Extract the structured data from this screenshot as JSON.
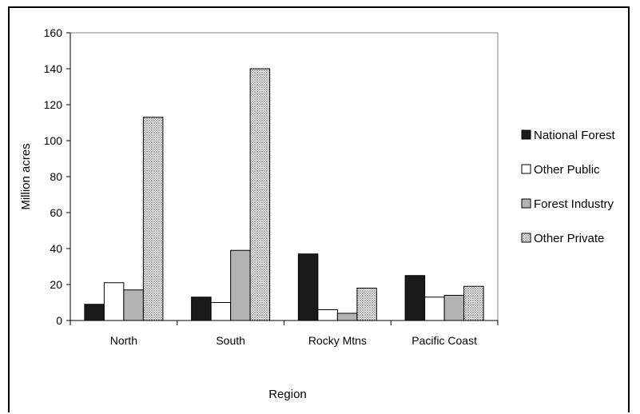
{
  "chart_data": {
    "type": "bar",
    "title": "",
    "xlabel": "Region",
    "ylabel": "Million acres",
    "ylim": [
      0,
      160
    ],
    "yticks": [
      0,
      20,
      40,
      60,
      80,
      100,
      120,
      140,
      160
    ],
    "categories": [
      "North",
      "South",
      "Rocky Mtns",
      "Pacific Coast"
    ],
    "series": [
      {
        "name": "National Forest",
        "values": [
          9,
          13,
          37,
          25
        ],
        "fill": "solid",
        "color": "#1a1a1a"
      },
      {
        "name": "Other Public",
        "values": [
          21,
          10,
          6,
          13
        ],
        "fill": "solid",
        "color": "#ffffff"
      },
      {
        "name": "Forest Industry",
        "values": [
          17,
          39,
          4,
          14
        ],
        "fill": "solid",
        "color": "#b3b3b3"
      },
      {
        "name": "Other Private",
        "values": [
          113,
          140,
          18,
          19
        ],
        "fill": "dotted",
        "color": "#e0e0e0"
      }
    ],
    "grid": false,
    "legend_position": "right"
  }
}
